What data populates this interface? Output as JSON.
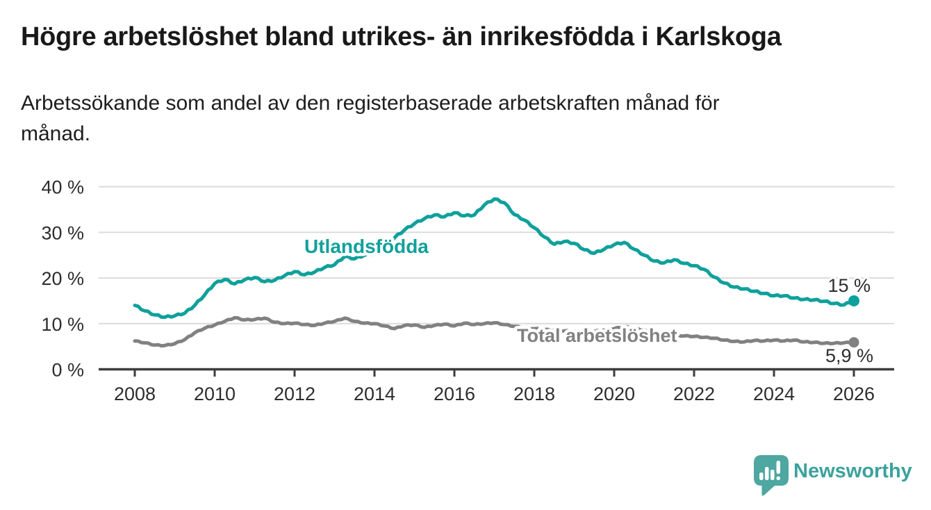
{
  "header": {
    "title": "Högre arbetslöshet bland utrikes- än inrikesfödda i Karlskoga",
    "subtitle_lines": [
      "Arbetssökande som andel av den registerbaserade arbetskraften månad för",
      "månad."
    ]
  },
  "footer": {
    "brand": "Newsworthy"
  },
  "colors": {
    "teal": "#10a09b",
    "gray": "#818181",
    "grid": "#dbdbdb",
    "axis": "#3d3d3d",
    "tick_text": "#2d2d2d",
    "annotation_text": "#2d2d2d",
    "logo_bubble": "#4ea7a1",
    "logo_text": "#3ba29c"
  },
  "chart_data": {
    "type": "line",
    "title": "Högre arbetslöshet bland utrikes- än inrikesfödda i Karlskoga",
    "subtitle": "Arbetssökande som andel av den registerbaserade arbetskraften månad för månad.",
    "xlabel": "",
    "ylabel": "",
    "x_unit": "year (monthly data)",
    "xlim": [
      2007.1,
      2027.0
    ],
    "ylim": [
      0,
      42
    ],
    "grid": "horizontal",
    "legend_position": "inline-labels",
    "x_ticks": [
      2008,
      2010,
      2012,
      2014,
      2016,
      2018,
      2020,
      2022,
      2024,
      2026
    ],
    "y_ticks": [
      0,
      10,
      20,
      30,
      40
    ],
    "y_tick_labels": [
      "0 %",
      "10 %",
      "20 %",
      "30 %",
      "40 %"
    ],
    "series": [
      {
        "name": "Utlandsfödda",
        "color": "#10a09b",
        "x_start": 2008.0,
        "x_step": 0.25,
        "values": [
          14.0,
          12.8,
          11.9,
          11.4,
          11.7,
          12.3,
          14.0,
          16.3,
          18.8,
          19.7,
          18.7,
          19.6,
          20.1,
          19.2,
          19.5,
          20.5,
          21.4,
          20.7,
          21.3,
          22.3,
          22.9,
          24.7,
          24.2,
          25.0,
          25.4,
          26.5,
          28.8,
          30.5,
          31.9,
          33.0,
          33.8,
          33.4,
          34.3,
          33.6,
          33.8,
          36.0,
          37.3,
          36.5,
          33.9,
          32.7,
          31.0,
          29.0,
          27.4,
          28.0,
          27.6,
          26.2,
          25.4,
          26.3,
          27.3,
          27.8,
          26.3,
          25.0,
          23.7,
          23.3,
          24.0,
          23.2,
          22.7,
          21.9,
          20.2,
          18.9,
          18.0,
          17.6,
          17.1,
          16.6,
          16.1,
          16.1,
          15.6,
          15.3,
          15.2,
          14.9,
          14.4,
          14.1,
          15.0
        ],
        "end_value": 15.0,
        "end_label": "15 %"
      },
      {
        "name": "Total arbetslöshet",
        "color": "#818181",
        "x_start": 2008.0,
        "x_step": 0.25,
        "values": [
          6.2,
          5.8,
          5.3,
          5.2,
          5.6,
          6.5,
          8.0,
          9.0,
          9.7,
          10.5,
          11.3,
          10.8,
          10.9,
          11.2,
          10.3,
          10.0,
          10.1,
          9.8,
          9.6,
          10.1,
          10.5,
          11.2,
          10.5,
          10.1,
          10.0,
          9.5,
          8.9,
          9.6,
          9.7,
          9.2,
          9.6,
          9.9,
          9.5,
          10.1,
          9.8,
          10.0,
          10.2,
          9.8,
          9.4,
          9.1,
          8.9,
          8.7,
          8.5,
          8.4,
          8.3,
          8.2,
          8.3,
          8.6,
          8.9,
          9.3,
          9.0,
          8.5,
          8.1,
          7.8,
          7.5,
          7.3,
          7.2,
          7.0,
          6.8,
          6.4,
          6.1,
          6.0,
          6.3,
          6.2,
          6.4,
          6.2,
          6.4,
          6.0,
          5.9,
          5.7,
          5.7,
          5.8,
          5.9
        ],
        "end_value": 5.9,
        "end_label": "5,9 %"
      }
    ]
  }
}
